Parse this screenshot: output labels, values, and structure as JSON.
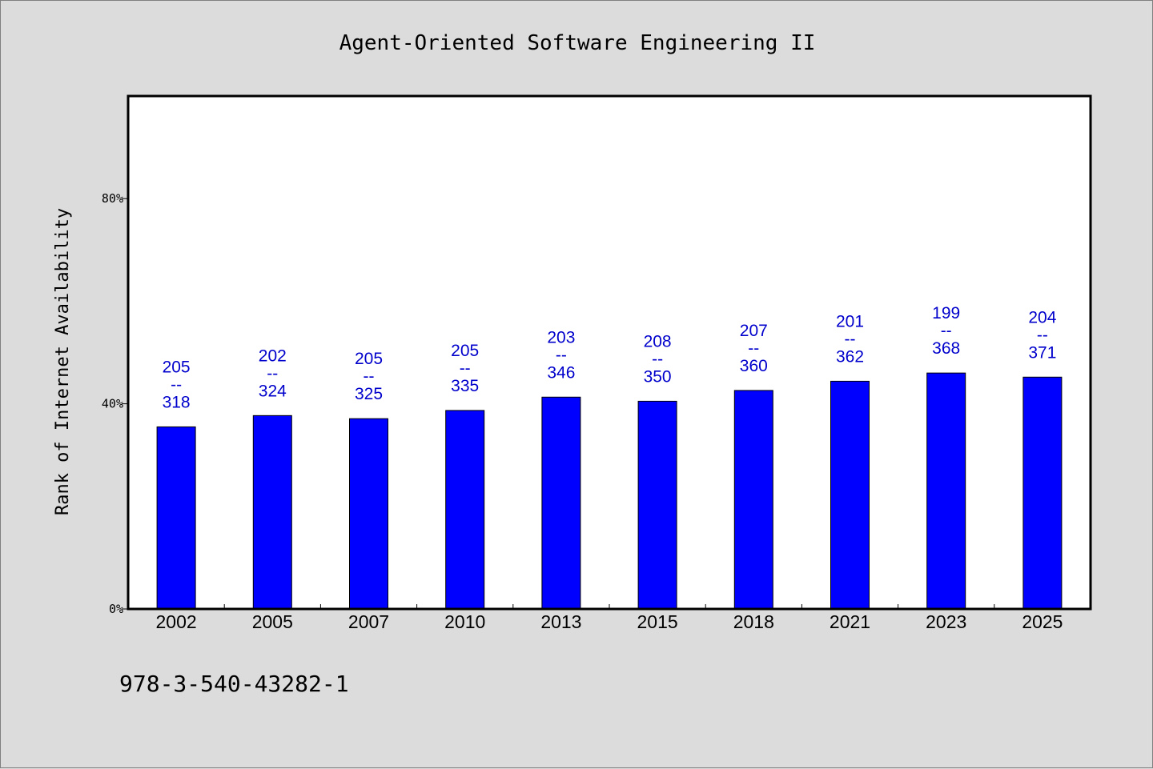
{
  "chart_data": {
    "type": "bar",
    "title": "Agent-Oriented Software Engineering II",
    "xlabel": "",
    "ylabel": "Rank of Internet Availability",
    "ylim": [
      0,
      100
    ],
    "yticks": [
      {
        "value": 0,
        "label": "0%"
      },
      {
        "value": 40,
        "label": "40%"
      },
      {
        "value": 80,
        "label": "80%"
      }
    ],
    "categories": [
      "2002",
      "2005",
      "2007",
      "2010",
      "2013",
      "2015",
      "2018",
      "2021",
      "2023",
      "2025"
    ],
    "values": [
      35.5,
      37.7,
      37.1,
      38.7,
      41.3,
      40.5,
      42.6,
      44.4,
      46.0,
      45.2
    ],
    "labels": [
      {
        "top": "205",
        "sep": "--",
        "bottom": "318"
      },
      {
        "top": "202",
        "sep": "--",
        "bottom": "324"
      },
      {
        "top": "205",
        "sep": "--",
        "bottom": "325"
      },
      {
        "top": "205",
        "sep": "--",
        "bottom": "335"
      },
      {
        "top": "203",
        "sep": "--",
        "bottom": "346"
      },
      {
        "top": "208",
        "sep": "--",
        "bottom": "350"
      },
      {
        "top": "207",
        "sep": "--",
        "bottom": "360"
      },
      {
        "top": "201",
        "sep": "--",
        "bottom": "362"
      },
      {
        "top": "199",
        "sep": "--",
        "bottom": "368"
      },
      {
        "top": "204",
        "sep": "--",
        "bottom": "371"
      }
    ],
    "bar_color": "#0000ff",
    "label_color": "#0000cc",
    "grid": false,
    "legend": "none"
  },
  "footer": {
    "isbn": "978-3-540-43282-1"
  }
}
